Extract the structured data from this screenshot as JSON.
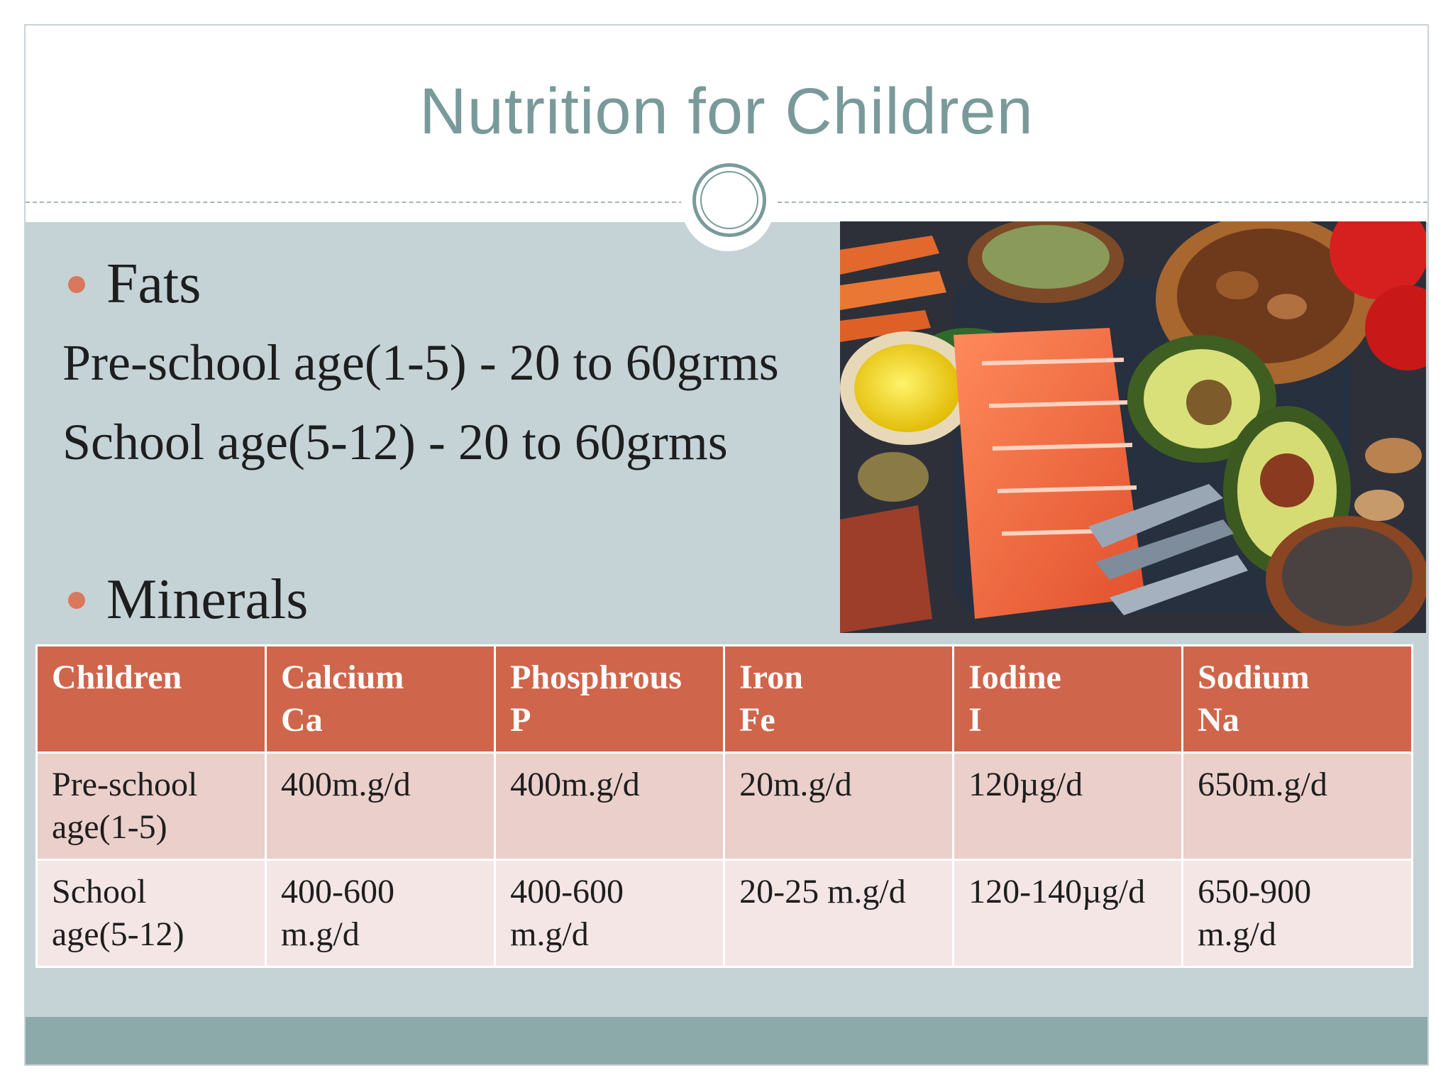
{
  "slide": {
    "title": "Nutrition for Children"
  },
  "fats": {
    "heading": "Fats",
    "lines": [
      "Pre-school age(1-5) - 20 to 60grms",
      "School age(5-12) - 20 to 60grms"
    ]
  },
  "minerals": {
    "heading": "Minerals",
    "table": {
      "headers": [
        {
          "name": "Children",
          "symbol": ""
        },
        {
          "name": "Calcium",
          "symbol": "Ca"
        },
        {
          "name": "Phosphrous",
          "symbol": "P"
        },
        {
          "name": "Iron",
          "symbol": "Fe"
        },
        {
          "name": "Iodine",
          "symbol": "I"
        },
        {
          "name": "Sodium",
          "symbol": "Na"
        }
      ],
      "rows": [
        {
          "group": [
            "Pre-school",
            "age(1-5)"
          ],
          "cells": [
            [
              "400m.g/d",
              ""
            ],
            [
              "400m.g/d",
              ""
            ],
            [
              "20m.g/d",
              ""
            ],
            [
              "120µg/d",
              ""
            ],
            [
              "650m.g/d",
              ""
            ]
          ]
        },
        {
          "group": [
            "School",
            "age(5-12)"
          ],
          "cells": [
            [
              "400-600",
              "m.g/d"
            ],
            [
              "400-600",
              "m.g/d"
            ],
            [
              "20-25 m.g/d",
              ""
            ],
            [
              "120-140µg/d",
              ""
            ],
            [
              "650-900",
              "m.g/d"
            ]
          ]
        }
      ]
    }
  },
  "colors": {
    "title": "#7a9a9a",
    "content_band": "#c5d3d7",
    "bottom_band": "#8daaaa",
    "bullet": "#d9785c",
    "table_header": "#cf654b",
    "table_row_1": "#ebcfcb",
    "table_row_2": "#f4e6e5"
  }
}
